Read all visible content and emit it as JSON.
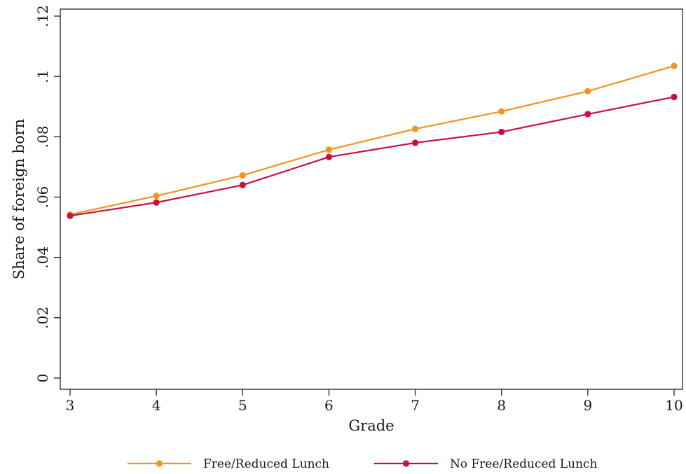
{
  "chart_data": {
    "type": "line",
    "title": "",
    "xlabel": "Grade",
    "ylabel": "Share of foreign born",
    "x": [
      3,
      4,
      5,
      6,
      7,
      8,
      9,
      10
    ],
    "xticks": [
      "3",
      "4",
      "5",
      "6",
      "7",
      "8",
      "9",
      "10"
    ],
    "xlim": [
      3,
      10
    ],
    "ylim": [
      0,
      0.12
    ],
    "yticks": [
      0,
      0.02,
      0.04,
      0.06,
      0.08,
      0.1,
      0.12
    ],
    "yticklabels": [
      "0",
      ".02",
      ".04",
      ".06",
      ".08",
      ".1",
      ".12"
    ],
    "grid": false,
    "legend_position": "bottom",
    "series": [
      {
        "name": "Free/Reduced Lunch",
        "color": "#F0951E",
        "values": [
          0.0542,
          0.0604,
          0.0672,
          0.0757,
          0.0826,
          0.0884,
          0.0951,
          0.1035
        ]
      },
      {
        "name": "No Free/Reduced Lunch",
        "color": "#C8103E",
        "values": [
          0.0538,
          0.0582,
          0.064,
          0.0733,
          0.078,
          0.0816,
          0.0875,
          0.0932
        ]
      }
    ]
  }
}
